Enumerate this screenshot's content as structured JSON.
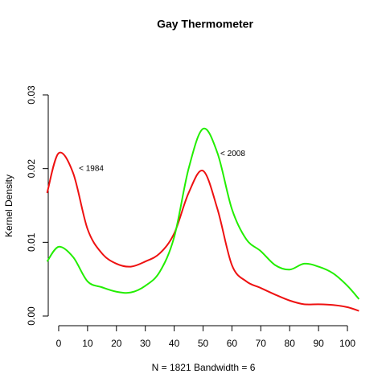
{
  "chart_data": {
    "type": "line",
    "title": "Gay Thermometer",
    "xlabel": "N = 1821   Bandwidth = 6",
    "ylabel": "Kernel Density",
    "x": [
      -4,
      0,
      5,
      10,
      15,
      20,
      25,
      30,
      35,
      40,
      45,
      50,
      55,
      60,
      65,
      70,
      75,
      80,
      85,
      90,
      95,
      100,
      104
    ],
    "series": [
      {
        "name": "< 1984",
        "color": "#ee1111",
        "values": [
          0.0167,
          0.0221,
          0.0194,
          0.0118,
          0.0085,
          0.0071,
          0.0067,
          0.0074,
          0.0085,
          0.0112,
          0.0167,
          0.0197,
          0.0145,
          0.0069,
          0.0047,
          0.0038,
          0.0029,
          0.0021,
          0.0016,
          0.0016,
          0.0015,
          0.0012,
          0.0007
        ]
      },
      {
        "name": "< 2008",
        "color": "#22ee00",
        "values": [
          0.0074,
          0.0094,
          0.008,
          0.0047,
          0.0039,
          0.0033,
          0.0032,
          0.0041,
          0.006,
          0.0107,
          0.02,
          0.0254,
          0.0221,
          0.0145,
          0.0104,
          0.0088,
          0.0069,
          0.0063,
          0.0071,
          0.0067,
          0.0058,
          0.0041,
          0.0023
        ]
      }
    ],
    "annotations": [
      {
        "text": "< 1984",
        "x": 7,
        "y": 0.02
      },
      {
        "text": "< 2008",
        "x": 56,
        "y": 0.022
      }
    ],
    "xlim": [
      -4,
      104
    ],
    "xticks": [
      0,
      10,
      20,
      30,
      40,
      50,
      60,
      70,
      80,
      90,
      100
    ],
    "ylim": [
      0,
      0.03
    ],
    "yticks": [
      {
        "value": 0,
        "label": "0.00"
      },
      0.01,
      0.02,
      0.03
    ],
    "grid": false
  }
}
